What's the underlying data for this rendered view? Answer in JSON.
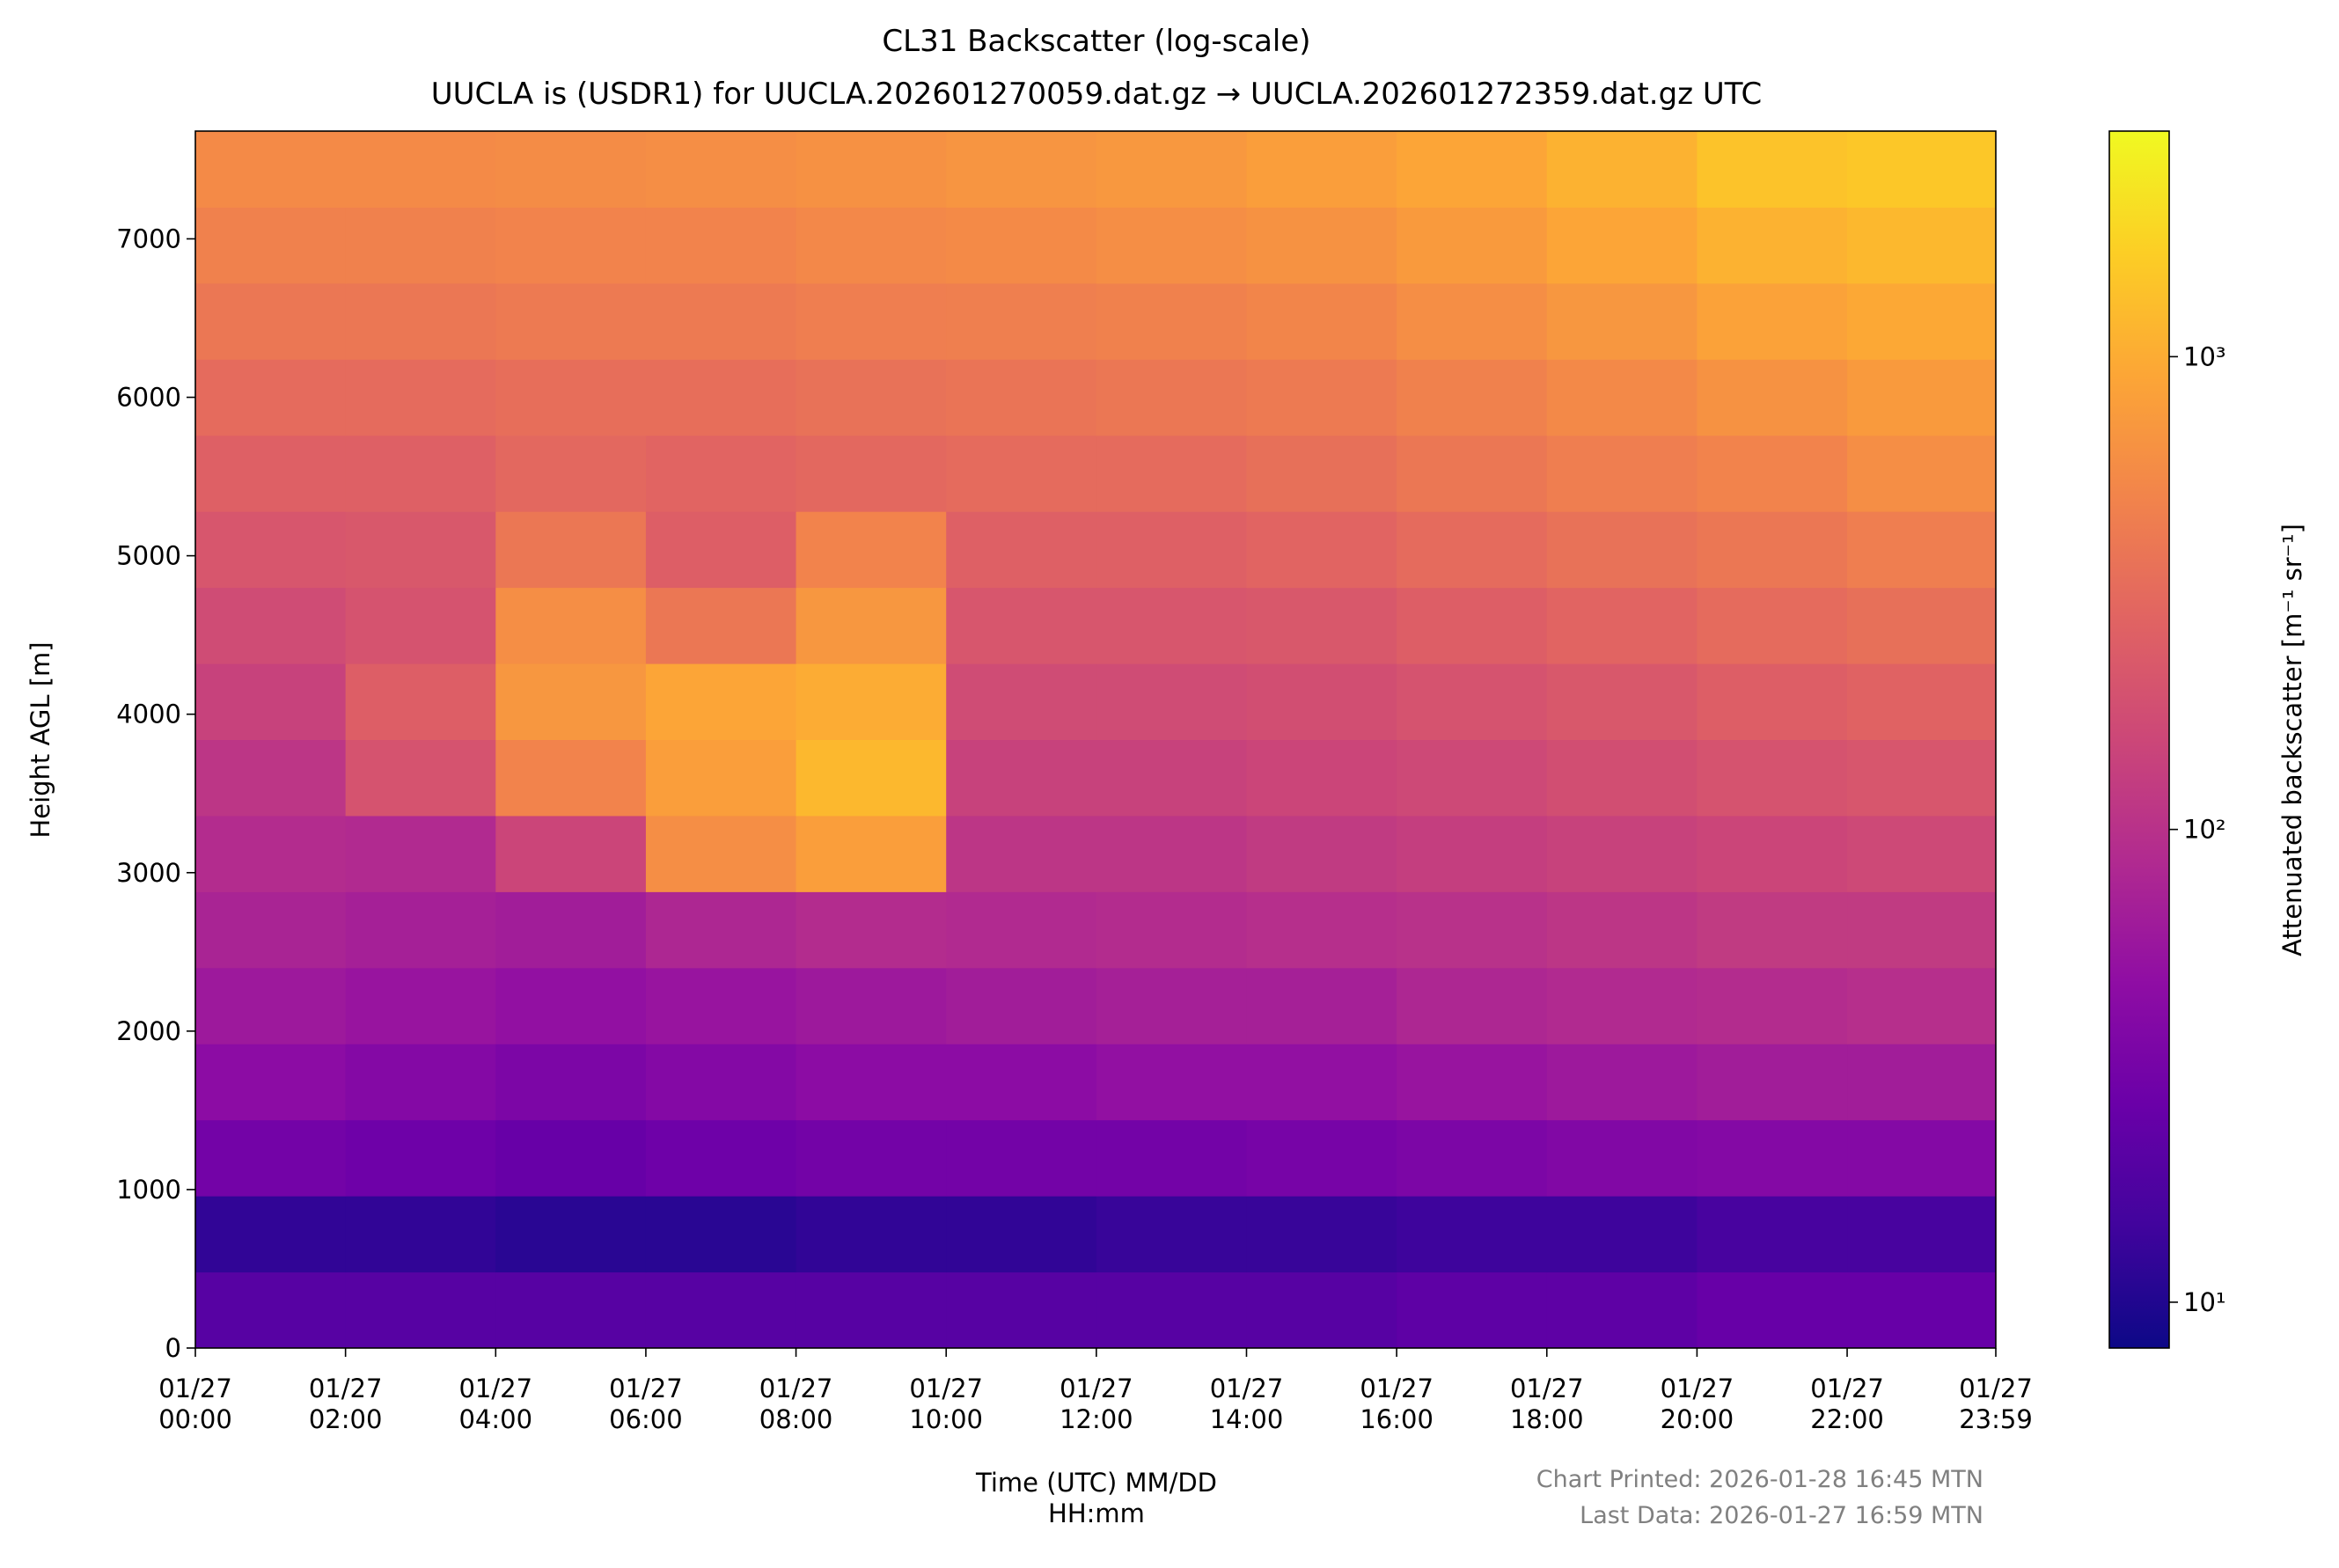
{
  "chart_data": {
    "type": "heatmap",
    "title": "CL31 Backscatter (log-scale)",
    "subtitle": "UUCLA is (USDR1) for UUCLA.202601270059.dat.gz → UUCLA.202601272359.dat.gz UTC",
    "x_label": "Time (UTC) MM/DD\nHH:mm",
    "y_label": "Height AGL [m]",
    "xlim": [
      0,
      23.98
    ],
    "xticks": [
      {
        "value": 0,
        "label": "01/27\n00:00"
      },
      {
        "value": 2,
        "label": "01/27\n02:00"
      },
      {
        "value": 4,
        "label": "01/27\n04:00"
      },
      {
        "value": 6,
        "label": "01/27\n06:00"
      },
      {
        "value": 8,
        "label": "01/27\n08:00"
      },
      {
        "value": 10,
        "label": "01/27\n10:00"
      },
      {
        "value": 12,
        "label": "01/27\n12:00"
      },
      {
        "value": 14,
        "label": "01/27\n14:00"
      },
      {
        "value": 16,
        "label": "01/27\n16:00"
      },
      {
        "value": 18,
        "label": "01/27\n18:00"
      },
      {
        "value": 20,
        "label": "01/27\n20:00"
      },
      {
        "value": 22,
        "label": "01/27\n22:00"
      },
      {
        "value": 23.98,
        "label": "01/27\n23:59"
      }
    ],
    "ylim": [
      0,
      7680
    ],
    "yticks": [
      0,
      1000,
      2000,
      3000,
      4000,
      5000,
      6000,
      7000
    ],
    "x_bins": [
      0,
      2,
      4,
      6,
      8,
      10,
      12,
      14,
      16,
      18,
      20,
      22,
      23.98
    ],
    "y_bins": [
      0,
      480,
      960,
      1440,
      1920,
      2400,
      2880,
      3360,
      3840,
      4320,
      4800,
      5280,
      5760,
      6240,
      6720,
      7200,
      7680
    ],
    "z": [
      [
        20,
        20,
        20,
        20,
        20,
        20,
        20,
        20,
        22,
        22,
        25,
        25
      ],
      [
        12,
        12,
        11,
        11,
        12,
        12,
        13,
        13,
        14,
        14,
        16,
        16
      ],
      [
        30,
        28,
        25,
        28,
        30,
        30,
        30,
        32,
        35,
        38,
        40,
        40
      ],
      [
        45,
        40,
        35,
        40,
        45,
        45,
        50,
        50,
        55,
        60,
        65,
        65
      ],
      [
        60,
        55,
        50,
        55,
        60,
        65,
        70,
        70,
        80,
        85,
        90,
        95
      ],
      [
        75,
        70,
        65,
        80,
        90,
        85,
        90,
        95,
        100,
        110,
        120,
        120
      ],
      [
        90,
        85,
        150,
        600,
        800,
        110,
        110,
        120,
        130,
        140,
        150,
        160
      ],
      [
        110,
        200,
        500,
        800,
        1200,
        140,
        140,
        150,
        160,
        180,
        200,
        210
      ],
      [
        140,
        250,
        700,
        900,
        1000,
        170,
        170,
        180,
        200,
        220,
        250,
        270
      ],
      [
        170,
        200,
        600,
        400,
        700,
        210,
        210,
        220,
        250,
        280,
        320,
        350
      ],
      [
        210,
        220,
        400,
        250,
        500,
        260,
        260,
        280,
        320,
        360,
        400,
        450
      ],
      [
        260,
        260,
        300,
        280,
        300,
        320,
        320,
        350,
        400,
        450,
        500,
        600
      ],
      [
        320,
        320,
        340,
        340,
        360,
        380,
        400,
        420,
        480,
        550,
        650,
        750
      ],
      [
        400,
        400,
        420,
        420,
        450,
        460,
        480,
        520,
        600,
        700,
        850,
        950
      ],
      [
        480,
        480,
        500,
        500,
        540,
        560,
        600,
        650,
        750,
        900,
        1100,
        1200
      ],
      [
        560,
        560,
        580,
        600,
        640,
        680,
        720,
        800,
        900,
        1100,
        1400,
        1500
      ]
    ],
    "colormap": "plasma",
    "colorbar": {
      "label": "Attenuated backscatter [m⁻¹ sr⁻¹]",
      "log": true,
      "clim": [
        8,
        3000
      ],
      "ticks": [
        {
          "value": 10,
          "label": "10¹"
        },
        {
          "value": 100,
          "label": "10²"
        },
        {
          "value": 1000,
          "label": "10³"
        }
      ]
    },
    "footer": [
      "Chart Printed: 2026-01-28 16:45 MTN",
      "Last Data: 2026-01-27 16:59 MTN"
    ]
  }
}
